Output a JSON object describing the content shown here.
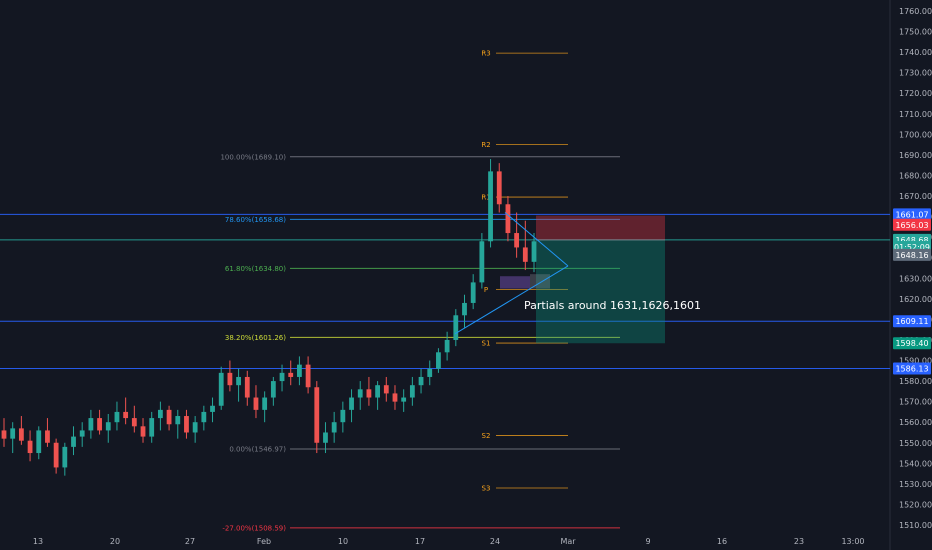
{
  "chart_data": {
    "type": "candlestick",
    "symbol_context": "XAUUSD-style daily/4H price chart",
    "x_ticks": [
      "13",
      "20",
      "27",
      "Feb",
      "10",
      "17",
      "24",
      "Mar",
      "9",
      "16",
      "23",
      "13:00"
    ],
    "y_ticks": [
      1510,
      1520,
      1530,
      1540,
      1550,
      1560,
      1570,
      1580,
      1590,
      1600,
      1610,
      1620,
      1630,
      1640,
      1650,
      1660,
      1670,
      1680,
      1690,
      1700,
      1710,
      1720,
      1730,
      1740,
      1750,
      1760
    ],
    "y_tick_labels": [
      "1510.00",
      "1520.00",
      "1530.00",
      "1540.00",
      "1550.00",
      "1560.00",
      "1570.00",
      "1580.00",
      "1590.00",
      "1600.00",
      "1610.00",
      "1620.00",
      "1630.00",
      "1640.00",
      "1650.00",
      "1660.00",
      "1670.00",
      "1680.00",
      "1690.00",
      "1700.00",
      "1710.00",
      "1720.00",
      "1730.00",
      "1740.00",
      "1750.00",
      "1760.00"
    ],
    "ylim": [
      1507,
      1763
    ],
    "horizontal_levels": [
      1661.07,
      1648.68,
      1609.11,
      1586.13
    ],
    "price_badges": [
      {
        "label": "1661.07",
        "value": 1661.07,
        "color": "#2962ff"
      },
      {
        "label": "1656.03",
        "value": 1656.03,
        "color": "#f23645"
      },
      {
        "label": "1648.68",
        "value": 1648.68,
        "color": "#26a69a"
      },
      {
        "label": "01:52:09",
        "value": 1645.2,
        "color": "#26a69a"
      },
      {
        "label": "1648.16",
        "value": 1641.4,
        "color": "#5d6a79"
      },
      {
        "label": "1609.11",
        "value": 1609.11,
        "color": "#2962ff"
      },
      {
        "label": "1598.40",
        "value": 1598.4,
        "color": "#089981"
      },
      {
        "label": "1586.13",
        "value": 1586.13,
        "color": "#2962ff"
      }
    ],
    "fib_levels": [
      {
        "label": "100.00%(1689.10)",
        "value": 1689.1,
        "color": "#787b86"
      },
      {
        "label": "78.60%(1658.68)",
        "value": 1658.68,
        "color": "#2196f3"
      },
      {
        "label": "61.80%(1634.80)",
        "value": 1634.8,
        "color": "#4caf50"
      },
      {
        "label": "38.20%(1601.26)",
        "value": 1601.26,
        "color": "#cddc39"
      },
      {
        "label": "0.00%(1546.97)",
        "value": 1546.97,
        "color": "#787b86"
      },
      {
        "label": "-27.00%(1508.59)",
        "value": 1508.59,
        "color": "#f23645"
      }
    ],
    "pivots": [
      {
        "label": "R3",
        "value": 1739.5
      },
      {
        "label": "R2",
        "value": 1695.0
      },
      {
        "label": "R1",
        "value": 1669.5
      },
      {
        "label": "P",
        "value": 1624.5
      },
      {
        "label": "S1",
        "value": 1598.5
      },
      {
        "label": "S2",
        "value": 1553.5
      },
      {
        "label": "S3",
        "value": 1528.0
      }
    ],
    "position": {
      "entry": 1648.68,
      "stop": 1656.03,
      "target": 1598.4
    },
    "annotation": "Partials around 1631,1626,1601",
    "candles": [
      [
        1556,
        1562,
        1548,
        1552
      ],
      [
        1552,
        1560,
        1545,
        1557
      ],
      [
        1557,
        1563,
        1549,
        1551
      ],
      [
        1551,
        1556,
        1541,
        1545
      ],
      [
        1545,
        1558,
        1542,
        1556
      ],
      [
        1556,
        1562,
        1548,
        1550
      ],
      [
        1550,
        1552,
        1535,
        1538
      ],
      [
        1538,
        1550,
        1534,
        1548
      ],
      [
        1548,
        1558,
        1544,
        1553
      ],
      [
        1553,
        1560,
        1548,
        1556
      ],
      [
        1556,
        1566,
        1552,
        1562
      ],
      [
        1562,
        1566,
        1554,
        1556
      ],
      [
        1556,
        1564,
        1550,
        1560
      ],
      [
        1560,
        1570,
        1556,
        1565
      ],
      [
        1565,
        1572,
        1559,
        1562
      ],
      [
        1562,
        1568,
        1555,
        1558
      ],
      [
        1558,
        1562,
        1550,
        1553
      ],
      [
        1553,
        1565,
        1550,
        1562
      ],
      [
        1562,
        1570,
        1556,
        1566
      ],
      [
        1566,
        1568,
        1556,
        1559
      ],
      [
        1559,
        1566,
        1552,
        1563
      ],
      [
        1563,
        1566,
        1552,
        1555
      ],
      [
        1555,
        1563,
        1550,
        1560
      ],
      [
        1560,
        1568,
        1556,
        1565
      ],
      [
        1565,
        1572,
        1560,
        1568
      ],
      [
        1568,
        1587,
        1566,
        1584
      ],
      [
        1584,
        1590,
        1575,
        1578
      ],
      [
        1578,
        1586,
        1570,
        1582
      ],
      [
        1582,
        1585,
        1568,
        1572
      ],
      [
        1572,
        1578,
        1562,
        1566
      ],
      [
        1566,
        1575,
        1560,
        1572
      ],
      [
        1572,
        1582,
        1568,
        1580
      ],
      [
        1580,
        1588,
        1575,
        1584
      ],
      [
        1584,
        1590,
        1578,
        1582
      ],
      [
        1582,
        1592,
        1578,
        1588
      ],
      [
        1588,
        1592,
        1574,
        1577
      ],
      [
        1577,
        1580,
        1545,
        1550
      ],
      [
        1550,
        1560,
        1545,
        1555
      ],
      [
        1555,
        1565,
        1550,
        1560
      ],
      [
        1560,
        1570,
        1555,
        1566
      ],
      [
        1566,
        1576,
        1560,
        1572
      ],
      [
        1572,
        1580,
        1566,
        1576
      ],
      [
        1576,
        1582,
        1568,
        1572
      ],
      [
        1572,
        1580,
        1566,
        1578
      ],
      [
        1578,
        1582,
        1570,
        1574
      ],
      [
        1574,
        1578,
        1566,
        1570
      ],
      [
        1570,
        1576,
        1565,
        1572
      ],
      [
        1572,
        1582,
        1568,
        1578
      ],
      [
        1578,
        1586,
        1574,
        1582
      ],
      [
        1582,
        1590,
        1578,
        1586
      ],
      [
        1586,
        1596,
        1584,
        1594
      ],
      [
        1594,
        1604,
        1590,
        1600
      ],
      [
        1600,
        1615,
        1597,
        1612
      ],
      [
        1612,
        1622,
        1606,
        1618
      ],
      [
        1618,
        1632,
        1615,
        1628
      ],
      [
        1628,
        1652,
        1625,
        1648
      ],
      [
        1648,
        1688,
        1645,
        1682
      ],
      [
        1682,
        1686,
        1662,
        1666
      ],
      [
        1666,
        1670,
        1648,
        1652
      ],
      [
        1652,
        1662,
        1640,
        1645
      ],
      [
        1645,
        1658,
        1634,
        1638
      ],
      [
        1638,
        1652,
        1633,
        1648
      ]
    ],
    "grid": false
  }
}
